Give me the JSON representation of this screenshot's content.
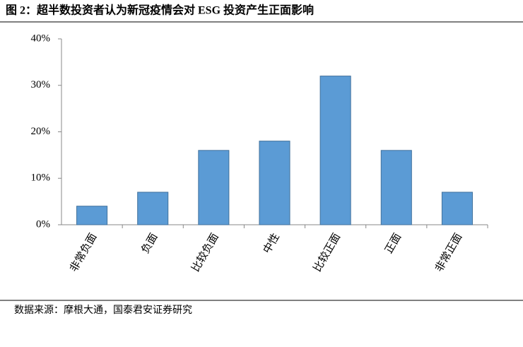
{
  "chart_data": {
    "type": "bar",
    "title": "图 2：超半数投资者认为新冠疫情会对 ESG 投资产生正面影响",
    "source": "数据来源：摩根大通，国泰君安证券研究",
    "categories": [
      "非常负面",
      "负面",
      "比较负面",
      "中性",
      "比较正面",
      "正面",
      "非常正面"
    ],
    "values": [
      4,
      7,
      16,
      18,
      32,
      16,
      7
    ],
    "color": "#5b9bd5",
    "ylim": [
      0,
      40
    ],
    "yticks": [
      {
        "value": 0,
        "label": "0%"
      },
      {
        "value": 10,
        "label": "10%"
      },
      {
        "value": 20,
        "label": "20%"
      },
      {
        "value": 30,
        "label": "30%"
      },
      {
        "value": 40,
        "label": "40%"
      }
    ],
    "grid": false
  }
}
